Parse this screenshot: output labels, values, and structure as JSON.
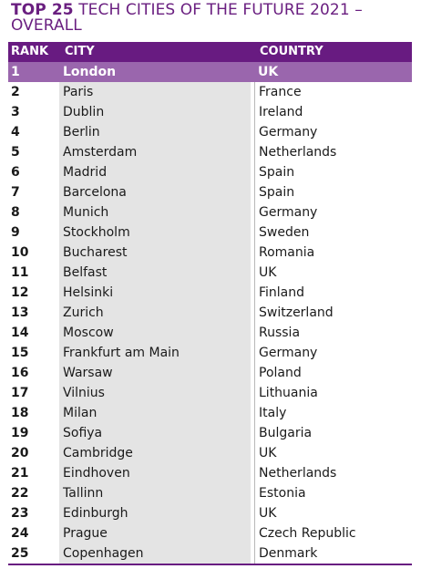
{
  "title": {
    "strong": "TOP 25",
    "rest": "TECH CITIES OF THE FUTURE 2021 –",
    "line2": "OVERALL"
  },
  "table": {
    "headers": {
      "rank": "RANK",
      "city": "CITY",
      "country": "COUNTRY"
    },
    "rows": [
      {
        "rank": "1",
        "city": "London",
        "country": "UK"
      },
      {
        "rank": "2",
        "city": "Paris",
        "country": "France"
      },
      {
        "rank": "3",
        "city": "Dublin",
        "country": "Ireland"
      },
      {
        "rank": "4",
        "city": "Berlin",
        "country": "Germany"
      },
      {
        "rank": "5",
        "city": "Amsterdam",
        "country": "Netherlands"
      },
      {
        "rank": "6",
        "city": "Madrid",
        "country": "Spain"
      },
      {
        "rank": "7",
        "city": "Barcelona",
        "country": "Spain"
      },
      {
        "rank": "8",
        "city": "Munich",
        "country": "Germany"
      },
      {
        "rank": "9",
        "city": "Stockholm",
        "country": "Sweden"
      },
      {
        "rank": "10",
        "city": "Bucharest",
        "country": "Romania"
      },
      {
        "rank": "11",
        "city": "Belfast",
        "country": "UK"
      },
      {
        "rank": "12",
        "city": "Helsinki",
        "country": "Finland"
      },
      {
        "rank": "13",
        "city": "Zurich",
        "country": "Switzerland"
      },
      {
        "rank": "14",
        "city": "Moscow",
        "country": "Russia"
      },
      {
        "rank": "15",
        "city": "Frankfurt am Main",
        "country": "Germany"
      },
      {
        "rank": "16",
        "city": "Warsaw",
        "country": "Poland"
      },
      {
        "rank": "17",
        "city": "Vilnius",
        "country": "Lithuania"
      },
      {
        "rank": "18",
        "city": "Milan",
        "country": "Italy"
      },
      {
        "rank": "19",
        "city": "Sofiya",
        "country": "Bulgaria"
      },
      {
        "rank": "20",
        "city": "Cambridge",
        "country": "UK"
      },
      {
        "rank": "21",
        "city": "Eindhoven",
        "country": "Netherlands"
      },
      {
        "rank": "22",
        "city": "Tallinn",
        "country": "Estonia"
      },
      {
        "rank": "23",
        "city": "Edinburgh",
        "country": "UK"
      },
      {
        "rank": "24",
        "city": "Prague",
        "country": "Czech Republic"
      },
      {
        "rank": "25",
        "city": "Copenhagen",
        "country": "Denmark"
      }
    ]
  },
  "colors": {
    "brand_purple": "#681b81",
    "highlight_purple": "#9a66ad",
    "city_cell_gray": "#e4e4e4"
  }
}
